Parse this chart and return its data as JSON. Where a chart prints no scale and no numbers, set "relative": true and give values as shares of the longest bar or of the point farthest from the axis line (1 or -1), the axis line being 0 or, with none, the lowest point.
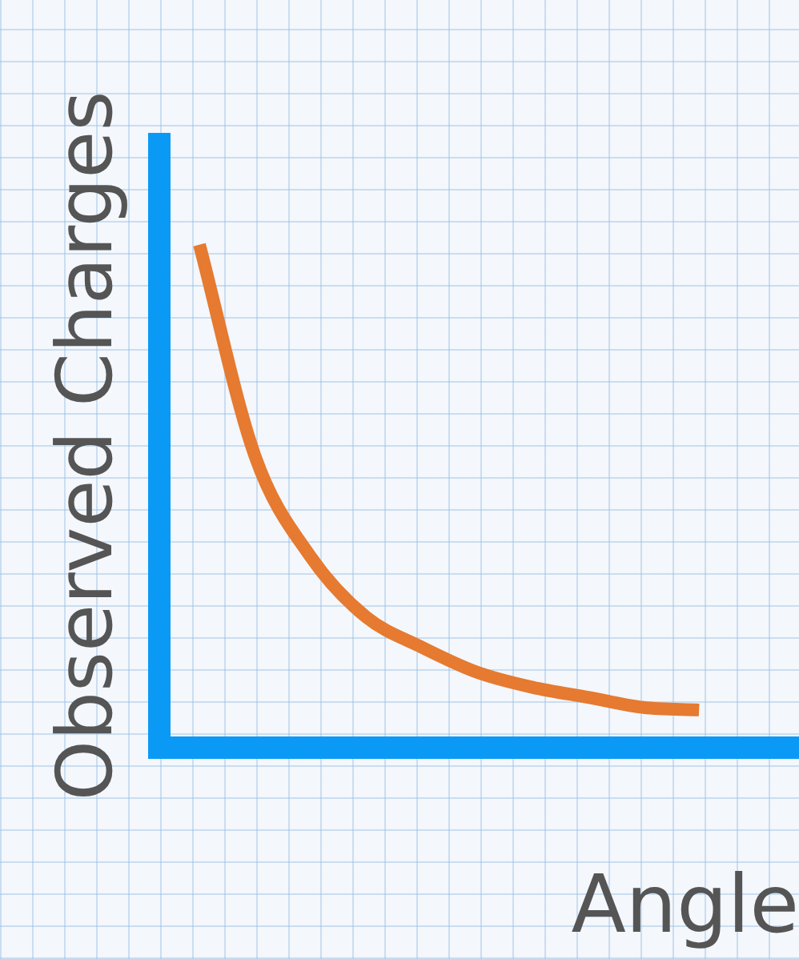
{
  "chart_data": {
    "type": "line",
    "relative": true,
    "xlabel": "Angle",
    "ylabel": "Observed Charges",
    "categories": [
      null,
      null,
      null,
      null,
      null,
      null,
      null,
      null,
      null,
      null
    ],
    "series": [
      {
        "color": "#e57a30",
        "values": [
          1,
          0.58,
          0.38,
          0.26,
          0.2,
          0.15,
          0.12,
          0.1,
          0.08,
          0.075
        ]
      }
    ],
    "marker": "none"
  }
}
